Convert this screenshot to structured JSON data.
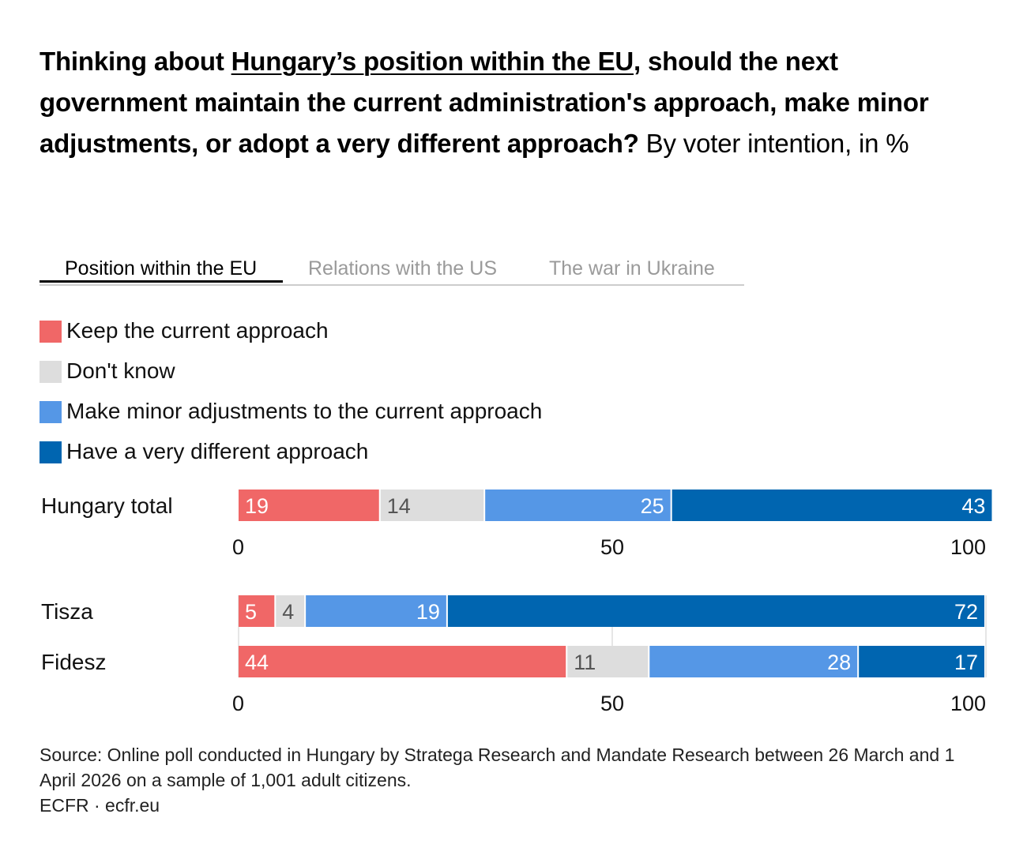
{
  "title": {
    "part1": "Thinking about ",
    "underlined": "Hungary’s position within the EU",
    "part2": ", should the next government maintain the current administration's approach, make minor adjustments, or adopt a very different approach?",
    "subtitle": " By voter intention, in %"
  },
  "tabs": [
    {
      "label": "Position within the EU",
      "active": true
    },
    {
      "label": "Relations with the US",
      "active": false
    },
    {
      "label": "The war in Ukraine",
      "active": false
    }
  ],
  "legend": [
    {
      "label": "Keep the current approach",
      "color": "#f06767"
    },
    {
      "label": "Don't know",
      "color": "#dddddd"
    },
    {
      "label": "Make minor adjustments to the current approach",
      "color": "#5597e6"
    },
    {
      "label": "Have a very different approach",
      "color": "#0065b0"
    }
  ],
  "chart_data": {
    "type": "bar",
    "stacked": true,
    "orientation": "horizontal",
    "xlim": [
      0,
      100
    ],
    "x_ticks": [
      "0",
      "50",
      "100"
    ],
    "series_names": [
      "Keep the current approach",
      "Don't know",
      "Make minor adjustments to the current approach",
      "Have a very different approach"
    ],
    "colors": [
      "#f06767",
      "#dddddd",
      "#5597e6",
      "#0065b0"
    ],
    "panels": [
      {
        "rows": [
          {
            "label": "Hungary total",
            "values": [
              19,
              14,
              25,
              43
            ]
          }
        ]
      },
      {
        "rows": [
          {
            "label": "Tisza",
            "values": [
              5,
              4,
              19,
              72
            ]
          },
          {
            "label": "Fidesz",
            "values": [
              44,
              11,
              28,
              17
            ]
          }
        ]
      }
    ]
  },
  "source": {
    "line1": "Source: Online poll conducted in Hungary by Stratega Research and Mandate Research between 26 March and 1 April 2026 on a sample of 1,001 adult citizens.",
    "line2": "ECFR · ecfr.eu"
  }
}
